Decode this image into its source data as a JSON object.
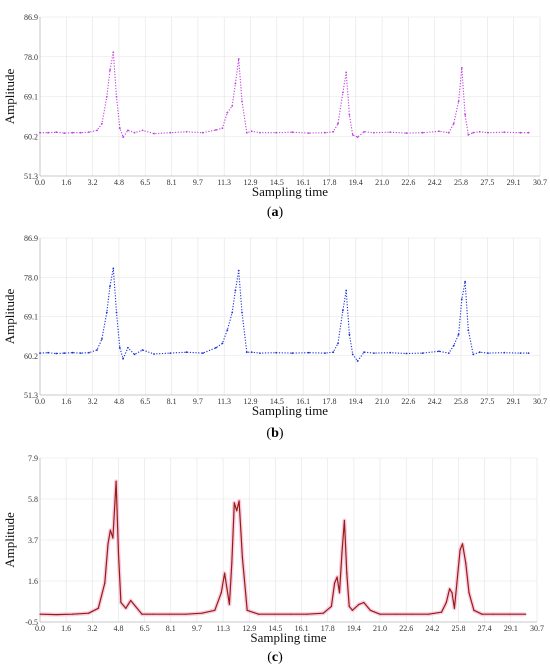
{
  "chart_data": [
    {
      "type": "line",
      "panel_label": "a",
      "xlabel": "Sampling time",
      "ylabel": "Amplitude",
      "xticks": [
        "0.0",
        "1.6",
        "3.2",
        "4.8",
        "6.5",
        "8.1",
        "9.7",
        "11.3",
        "12.9",
        "14.5",
        "16.1",
        "17.8",
        "19.4",
        "21.0",
        "22.6",
        "24.2",
        "25.8",
        "27.5",
        "29.1",
        "30.7"
      ],
      "yticks": [
        "51.3",
        "60.2",
        "69.1",
        "78.0",
        "86.9"
      ],
      "xlim": [
        0,
        30.7
      ],
      "ylim": [
        51.3,
        86.9
      ],
      "grid": true,
      "style": "dotted",
      "color": "#c040e0",
      "series": [
        {
          "x": [
            0.0,
            0.5,
            1.0,
            1.5,
            2.0,
            2.5,
            3.0,
            3.5,
            3.8,
            4.1,
            4.3,
            4.5,
            4.7,
            4.9,
            5.1,
            5.4,
            5.8,
            6.3,
            7.0,
            8.0,
            9.0,
            10.0,
            10.8,
            11.2,
            11.5,
            11.8,
            12.0,
            12.2,
            12.4,
            12.7,
            13.0,
            13.5,
            14.5,
            15.5,
            16.5,
            17.5,
            18.0,
            18.3,
            18.6,
            18.8,
            19.0,
            19.2,
            19.5,
            19.9,
            20.5,
            21.5,
            22.5,
            23.5,
            24.5,
            25.1,
            25.4,
            25.7,
            25.9,
            26.1,
            26.3,
            26.6,
            27.0,
            27.5,
            28.5,
            29.5,
            30.0
          ],
          "y": [
            61.0,
            61.0,
            61.1,
            60.9,
            61.0,
            61.0,
            61.1,
            61.5,
            63.0,
            69.0,
            75.0,
            79.0,
            69.0,
            62.0,
            60.0,
            61.5,
            61.0,
            61.5,
            60.8,
            61.0,
            61.2,
            61.0,
            61.6,
            62.0,
            65.5,
            67.0,
            72.0,
            77.5,
            68.0,
            61.0,
            61.3,
            61.0,
            61.0,
            61.1,
            60.9,
            61.0,
            61.2,
            63.0,
            70.0,
            74.5,
            65.0,
            60.5,
            60.0,
            61.2,
            61.0,
            61.1,
            60.9,
            61.0,
            61.3,
            61.0,
            63.0,
            68.0,
            75.5,
            65.0,
            60.5,
            61.0,
            61.2,
            61.0,
            61.1,
            61.0,
            61.0
          ]
        }
      ]
    },
    {
      "type": "line",
      "panel_label": "b",
      "xlabel": "Sampling time",
      "ylabel": "Amplitude",
      "xticks": [
        "0.0",
        "1.6",
        "3.2",
        "4.8",
        "6.5",
        "8.1",
        "9.7",
        "11.3",
        "12.9",
        "14.5",
        "16.1",
        "17.8",
        "19.4",
        "21.0",
        "22.6",
        "24.2",
        "25.8",
        "27.5",
        "29.1",
        "30.7"
      ],
      "yticks": [
        "51.3",
        "60.2",
        "69.1",
        "78.0",
        "86.9"
      ],
      "xlim": [
        0,
        30.7
      ],
      "ylim": [
        51.3,
        86.9
      ],
      "grid": true,
      "style": "dotted",
      "color": "#1a2fd8",
      "series": [
        {
          "x": [
            0.0,
            0.5,
            1.0,
            1.5,
            2.0,
            2.5,
            3.0,
            3.5,
            3.8,
            4.1,
            4.3,
            4.5,
            4.7,
            4.9,
            5.1,
            5.4,
            5.8,
            6.3,
            7.0,
            8.0,
            9.0,
            10.0,
            10.8,
            11.2,
            11.5,
            11.8,
            12.0,
            12.2,
            12.4,
            12.7,
            13.0,
            13.5,
            14.5,
            15.5,
            16.5,
            17.5,
            18.0,
            18.3,
            18.6,
            18.8,
            19.0,
            19.2,
            19.5,
            19.9,
            20.5,
            21.5,
            22.5,
            23.5,
            24.5,
            25.1,
            25.4,
            25.7,
            25.9,
            26.1,
            26.3,
            26.6,
            27.0,
            27.5,
            28.5,
            29.5,
            30.0
          ],
          "y": [
            60.8,
            60.9,
            60.7,
            60.8,
            60.9,
            60.8,
            60.9,
            61.5,
            64.0,
            70.0,
            76.0,
            80.0,
            70.0,
            62.0,
            59.5,
            62.0,
            60.5,
            61.5,
            60.6,
            60.8,
            61.0,
            60.8,
            62.0,
            63.0,
            66.0,
            70.0,
            75.0,
            79.5,
            70.0,
            61.0,
            61.0,
            60.8,
            60.9,
            60.8,
            60.9,
            60.8,
            61.0,
            63.0,
            70.5,
            75.0,
            65.0,
            60.5,
            59.0,
            61.0,
            60.8,
            60.9,
            60.7,
            60.8,
            61.2,
            60.8,
            62.5,
            65.0,
            73.0,
            77.0,
            66.0,
            60.5,
            61.0,
            60.8,
            60.9,
            60.8,
            60.8
          ]
        }
      ]
    },
    {
      "type": "line",
      "panel_label": "c",
      "xlabel": "Sampling time",
      "ylabel": "Amplitude",
      "xticks": [
        "0.0",
        "1.6",
        "3.2",
        "4.8",
        "6.5",
        "8.1",
        "9.7",
        "11.3",
        "12.9",
        "14.5",
        "16.1",
        "17.8",
        "19.4",
        "21.0",
        "22.6",
        "24.2",
        "25.8",
        "27.4",
        "29.1",
        "30.7"
      ],
      "yticks": [
        "-0.5",
        "1.6",
        "3.7",
        "5.8",
        "7.9"
      ],
      "xlim": [
        0,
        30.7
      ],
      "ylim": [
        -0.5,
        7.9
      ],
      "grid": true,
      "style": "solid",
      "color": "#9b1c0e",
      "band_color": "#f2b8d8",
      "series": [
        {
          "x": [
            0.0,
            1.0,
            2.0,
            3.0,
            3.6,
            4.0,
            4.2,
            4.35,
            4.5,
            4.7,
            4.85,
            5.0,
            5.3,
            5.6,
            5.9,
            6.3,
            7.0,
            8.0,
            9.0,
            10.0,
            10.8,
            11.2,
            11.4,
            11.55,
            11.7,
            11.85,
            12.0,
            12.15,
            12.3,
            12.5,
            12.8,
            13.5,
            14.5,
            15.5,
            16.5,
            17.5,
            18.0,
            18.2,
            18.35,
            18.5,
            18.65,
            18.8,
            18.95,
            19.1,
            19.3,
            19.7,
            20.0,
            20.4,
            21.0,
            22.0,
            23.0,
            24.0,
            24.8,
            25.1,
            25.3,
            25.45,
            25.6,
            25.75,
            25.95,
            26.1,
            26.3,
            26.5,
            26.8,
            27.3,
            28.0,
            29.0,
            30.0
          ],
          "y": [
            -0.1,
            -0.12,
            -0.1,
            -0.05,
            0.2,
            1.5,
            3.5,
            4.2,
            3.8,
            6.7,
            3.0,
            0.5,
            0.2,
            0.6,
            0.3,
            -0.1,
            -0.1,
            -0.1,
            -0.1,
            -0.05,
            0.1,
            1.0,
            2.0,
            1.2,
            0.4,
            2.5,
            5.6,
            5.2,
            5.7,
            2.8,
            0.1,
            -0.1,
            -0.1,
            -0.1,
            -0.1,
            -0.05,
            0.3,
            1.5,
            1.8,
            1.0,
            3.0,
            4.7,
            2.0,
            0.3,
            0.1,
            0.4,
            0.5,
            0.1,
            -0.1,
            -0.1,
            -0.1,
            -0.1,
            0.0,
            0.5,
            1.2,
            1.0,
            0.2,
            1.5,
            3.2,
            3.5,
            2.5,
            1.0,
            0.1,
            -0.1,
            -0.1,
            -0.1,
            -0.1
          ]
        }
      ]
    }
  ]
}
